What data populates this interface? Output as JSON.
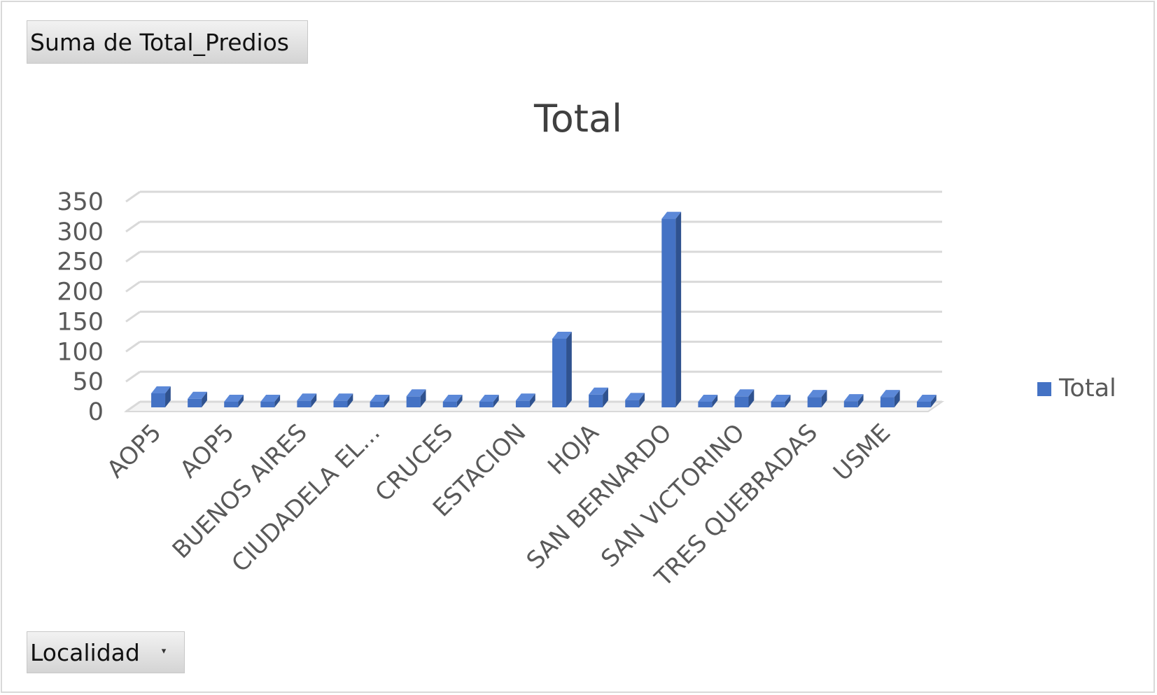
{
  "pivot": {
    "value_field": "Suma de Total_Predios",
    "axis_field": "Localidad",
    "axis_dropdown_icon": "chevron-down-icon"
  },
  "colors": {
    "bar_front": "#4472c4",
    "bar_side": "#2f528f",
    "bar_top": "#5b88d8",
    "grid": "#d9d9d9",
    "text": "#595959"
  },
  "chart_data": {
    "type": "bar",
    "title": "Total",
    "xlabel": "",
    "ylabel": "",
    "ylim": [
      0,
      350
    ],
    "yticks": [
      0,
      50,
      100,
      150,
      200,
      250,
      300,
      350
    ],
    "grid": true,
    "legend": "right",
    "categories": [
      "AOP5",
      "",
      "AOP5",
      "",
      "BUENOS AIRES",
      "",
      "CIUDADELA EL...",
      "",
      "CRUCES",
      "",
      "ESTACION",
      "",
      "HOJA",
      "",
      "SAN BERNARDO",
      "",
      "SAN VICTORINO",
      "",
      "TRES QUEBRADAS",
      "",
      "USME",
      ""
    ],
    "series": [
      {
        "name": "Total",
        "values": [
          14,
          5,
          0,
          0,
          2,
          2,
          0,
          9,
          0,
          0,
          2,
          105,
          12,
          3,
          305,
          0,
          9,
          0,
          8,
          1,
          8,
          0
        ]
      }
    ]
  }
}
